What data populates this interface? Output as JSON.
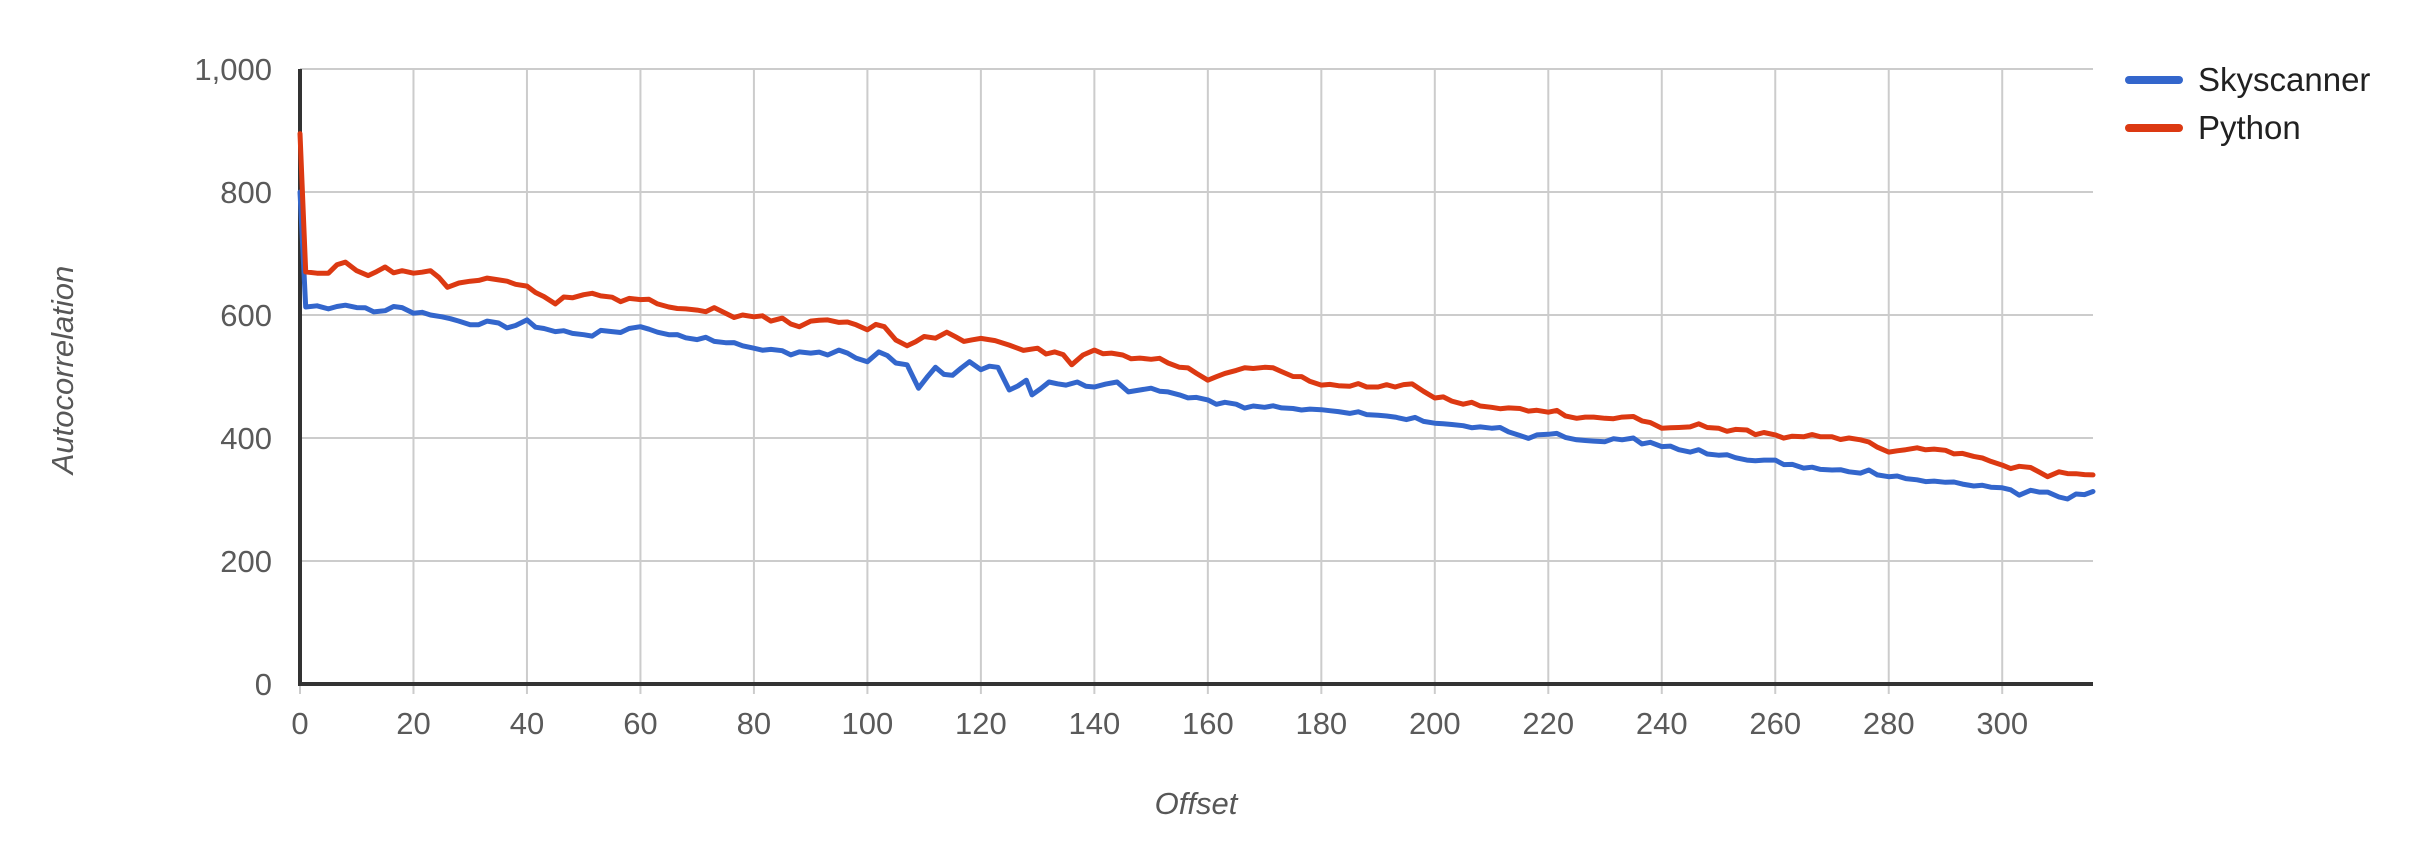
{
  "chart_data": {
    "type": "line",
    "title": "",
    "xlabel": "Offset",
    "ylabel": "Autocorrelation",
    "legend_position": "right-top",
    "grid": true,
    "x_range": [
      0,
      316
    ],
    "y_range": [
      0,
      1000
    ],
    "x_ticks": {
      "values": [
        0,
        20,
        40,
        60,
        80,
        100,
        120,
        140,
        160,
        180,
        200,
        220,
        240,
        260,
        280,
        300
      ],
      "labels": [
        "0",
        "20",
        "40",
        "60",
        "80",
        "100",
        "120",
        "140",
        "160",
        "180",
        "200",
        "220",
        "240",
        "260",
        "280",
        "300"
      ]
    },
    "y_ticks": {
      "values": [
        0,
        200,
        400,
        600,
        800,
        1000
      ],
      "labels": [
        "0",
        "200",
        "400",
        "600",
        "800",
        "1,000"
      ]
    },
    "series": [
      {
        "name": "Skyscanner",
        "color": "#3366cc",
        "jitter": 6.5,
        "points": [
          [
            0,
            800
          ],
          [
            1,
            613
          ],
          [
            3,
            615
          ],
          [
            5,
            610
          ],
          [
            8,
            616
          ],
          [
            10,
            612
          ],
          [
            13,
            605
          ],
          [
            15,
            607
          ],
          [
            18,
            612
          ],
          [
            20,
            603
          ],
          [
            23,
            600
          ],
          [
            25,
            597
          ],
          [
            28,
            590
          ],
          [
            30,
            584
          ],
          [
            33,
            590
          ],
          [
            35,
            587
          ],
          [
            38,
            583
          ],
          [
            40,
            592
          ],
          [
            43,
            578
          ],
          [
            45,
            573
          ],
          [
            48,
            570
          ],
          [
            50,
            568
          ],
          [
            53,
            575
          ],
          [
            55,
            573
          ],
          [
            58,
            578
          ],
          [
            60,
            581
          ],
          [
            63,
            572
          ],
          [
            65,
            568
          ],
          [
            68,
            563
          ],
          [
            70,
            560
          ],
          [
            73,
            557
          ],
          [
            75,
            555
          ],
          [
            78,
            550
          ],
          [
            80,
            546
          ],
          [
            83,
            544
          ],
          [
            85,
            542
          ],
          [
            88,
            540
          ],
          [
            90,
            538
          ],
          [
            93,
            535
          ],
          [
            95,
            543
          ],
          [
            98,
            530
          ],
          [
            100,
            524
          ],
          [
            102,
            540
          ],
          [
            105,
            522
          ],
          [
            107,
            519
          ],
          [
            109,
            481
          ],
          [
            112,
            515
          ],
          [
            115,
            502
          ],
          [
            118,
            524
          ],
          [
            120,
            511
          ],
          [
            123,
            515
          ],
          [
            125,
            478
          ],
          [
            128,
            494
          ],
          [
            129,
            470
          ],
          [
            132,
            491
          ],
          [
            135,
            486
          ],
          [
            137,
            491
          ],
          [
            140,
            483
          ],
          [
            144,
            491
          ],
          [
            146,
            475
          ],
          [
            148,
            478
          ],
          [
            150,
            481
          ],
          [
            153,
            475
          ],
          [
            155,
            470
          ],
          [
            158,
            466
          ],
          [
            160,
            462
          ],
          [
            163,
            458
          ],
          [
            165,
            455
          ],
          [
            168,
            452
          ],
          [
            170,
            450
          ],
          [
            173,
            449
          ],
          [
            175,
            448
          ],
          [
            178,
            447
          ],
          [
            180,
            446
          ],
          [
            183,
            443
          ],
          [
            185,
            440
          ],
          [
            188,
            438
          ],
          [
            190,
            437
          ],
          [
            193,
            434
          ],
          [
            195,
            430
          ],
          [
            198,
            427
          ],
          [
            200,
            424
          ],
          [
            203,
            422
          ],
          [
            205,
            420
          ],
          [
            208,
            418
          ],
          [
            210,
            416
          ],
          [
            213,
            410
          ],
          [
            215,
            404
          ],
          [
            218,
            405
          ],
          [
            220,
            406
          ],
          [
            223,
            401
          ],
          [
            225,
            397
          ],
          [
            228,
            395
          ],
          [
            230,
            394
          ],
          [
            233,
            397
          ],
          [
            235,
            400
          ],
          [
            238,
            393
          ],
          [
            240,
            386
          ],
          [
            243,
            381
          ],
          [
            245,
            377
          ],
          [
            248,
            374
          ],
          [
            250,
            372
          ],
          [
            253,
            368
          ],
          [
            255,
            364
          ],
          [
            258,
            364
          ],
          [
            260,
            364
          ],
          [
            263,
            357
          ],
          [
            265,
            351
          ],
          [
            268,
            349
          ],
          [
            270,
            348
          ],
          [
            273,
            345
          ],
          [
            275,
            343
          ],
          [
            278,
            340
          ],
          [
            280,
            337
          ],
          [
            283,
            334
          ],
          [
            285,
            332
          ],
          [
            288,
            330
          ],
          [
            290,
            328
          ],
          [
            293,
            325
          ],
          [
            295,
            322
          ],
          [
            298,
            320
          ],
          [
            300,
            319
          ],
          [
            303,
            307
          ],
          [
            305,
            315
          ],
          [
            308,
            312
          ],
          [
            310,
            304
          ],
          [
            313,
            309
          ],
          [
            316,
            313
          ]
        ]
      },
      {
        "name": "Python",
        "color": "#dc3912",
        "jitter": 6.5,
        "points": [
          [
            0,
            895
          ],
          [
            1,
            670
          ],
          [
            3,
            668
          ],
          [
            5,
            668
          ],
          [
            8,
            686
          ],
          [
            10,
            672
          ],
          [
            12,
            664
          ],
          [
            15,
            678
          ],
          [
            18,
            672
          ],
          [
            20,
            668
          ],
          [
            23,
            672
          ],
          [
            26,
            645
          ],
          [
            28,
            652
          ],
          [
            30,
            655
          ],
          [
            33,
            660
          ],
          [
            35,
            657
          ],
          [
            38,
            650
          ],
          [
            40,
            647
          ],
          [
            43,
            630
          ],
          [
            45,
            618
          ],
          [
            48,
            628
          ],
          [
            50,
            633
          ],
          [
            53,
            631
          ],
          [
            55,
            629
          ],
          [
            58,
            627
          ],
          [
            60,
            625
          ],
          [
            63,
            618
          ],
          [
            65,
            613
          ],
          [
            68,
            610
          ],
          [
            70,
            608
          ],
          [
            73,
            612
          ],
          [
            75,
            603
          ],
          [
            78,
            600
          ],
          [
            80,
            597
          ],
          [
            83,
            590
          ],
          [
            85,
            595
          ],
          [
            88,
            581
          ],
          [
            90,
            590
          ],
          [
            93,
            592
          ],
          [
            95,
            588
          ],
          [
            98,
            584
          ],
          [
            100,
            576
          ],
          [
            103,
            581
          ],
          [
            107,
            550
          ],
          [
            110,
            565
          ],
          [
            114,
            572
          ],
          [
            117,
            557
          ],
          [
            120,
            562
          ],
          [
            125,
            551
          ],
          [
            130,
            546
          ],
          [
            133,
            540
          ],
          [
            136,
            519
          ],
          [
            138,
            535
          ],
          [
            140,
            543
          ],
          [
            143,
            538
          ],
          [
            145,
            535
          ],
          [
            148,
            530
          ],
          [
            150,
            528
          ],
          [
            153,
            522
          ],
          [
            155,
            515
          ],
          [
            158,
            505
          ],
          [
            160,
            494
          ],
          [
            163,
            505
          ],
          [
            165,
            510
          ],
          [
            168,
            513
          ],
          [
            170,
            515
          ],
          [
            173,
            508
          ],
          [
            175,
            500
          ],
          [
            178,
            492
          ],
          [
            180,
            486
          ],
          [
            183,
            485
          ],
          [
            185,
            484
          ],
          [
            188,
            483
          ],
          [
            190,
            483
          ],
          [
            193,
            483
          ],
          [
            196,
            488
          ],
          [
            198,
            476
          ],
          [
            200,
            465
          ],
          [
            203,
            460
          ],
          [
            205,
            455
          ],
          [
            208,
            452
          ],
          [
            210,
            450
          ],
          [
            213,
            449
          ],
          [
            215,
            448
          ],
          [
            218,
            445
          ],
          [
            220,
            442
          ],
          [
            223,
            436
          ],
          [
            225,
            432
          ],
          [
            228,
            434
          ],
          [
            230,
            432
          ],
          [
            233,
            434
          ],
          [
            235,
            435
          ],
          [
            238,
            425
          ],
          [
            240,
            416
          ],
          [
            243,
            417
          ],
          [
            245,
            418
          ],
          [
            248,
            417
          ],
          [
            250,
            416
          ],
          [
            253,
            414
          ],
          [
            255,
            413
          ],
          [
            258,
            409
          ],
          [
            260,
            405
          ],
          [
            263,
            403
          ],
          [
            265,
            402
          ],
          [
            268,
            402
          ],
          [
            270,
            402
          ],
          [
            273,
            400
          ],
          [
            275,
            397
          ],
          [
            278,
            385
          ],
          [
            280,
            377
          ],
          [
            283,
            381
          ],
          [
            285,
            384
          ],
          [
            288,
            382
          ],
          [
            290,
            380
          ],
          [
            293,
            375
          ],
          [
            295,
            370
          ],
          [
            298,
            362
          ],
          [
            300,
            356
          ],
          [
            303,
            354
          ],
          [
            305,
            352
          ],
          [
            308,
            337
          ],
          [
            310,
            345
          ],
          [
            313,
            342
          ],
          [
            316,
            340
          ]
        ]
      }
    ],
    "colors": {
      "background": "#ffffff",
      "grid": "#cccccc",
      "axis": "#333333",
      "tick_label": "#5a5a5a",
      "axis_title": "#575757",
      "legend_text": "#212121"
    }
  }
}
